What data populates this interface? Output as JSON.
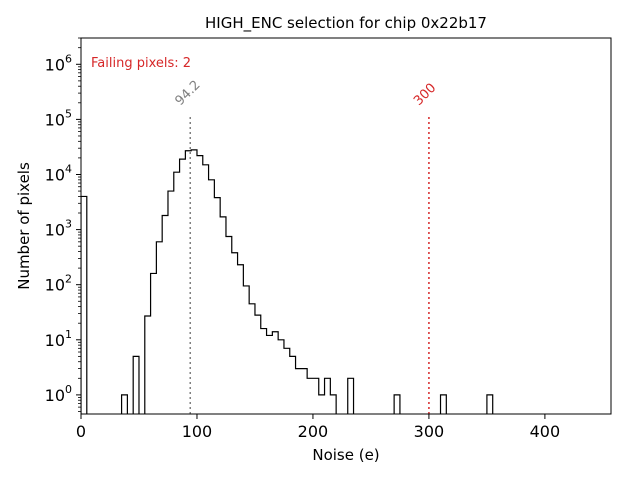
{
  "chart_data": {
    "type": "histogram",
    "title": "HIGH_ENC selection for chip 0x22b17",
    "xlabel": "Noise (e)",
    "ylabel": "Number of pixels",
    "yscale": "log",
    "xlim": [
      0,
      457
    ],
    "ylim": [
      0.45,
      3000000
    ],
    "xticks": [
      0,
      100,
      200,
      300,
      400
    ],
    "xtick_labels": [
      "0",
      "100",
      "200",
      "300",
      "400"
    ],
    "yticks": [
      1,
      10,
      100,
      1000,
      10000,
      100000,
      1000000
    ],
    "ytick_labels": [
      "10^0",
      "10^1",
      "10^2",
      "10^3",
      "10^4",
      "10^5",
      "10^6"
    ],
    "bin_width": 5,
    "bins": [
      {
        "x0": 0,
        "count": 4000
      },
      {
        "x0": 35,
        "count": 1
      },
      {
        "x0": 45,
        "count": 5
      },
      {
        "x0": 55,
        "count": 27
      },
      {
        "x0": 60,
        "count": 160
      },
      {
        "x0": 65,
        "count": 600
      },
      {
        "x0": 70,
        "count": 1800
      },
      {
        "x0": 75,
        "count": 5000
      },
      {
        "x0": 80,
        "count": 11000
      },
      {
        "x0": 85,
        "count": 19000
      },
      {
        "x0": 90,
        "count": 27000
      },
      {
        "x0": 95,
        "count": 28000
      },
      {
        "x0": 100,
        "count": 22000
      },
      {
        "x0": 105,
        "count": 15000
      },
      {
        "x0": 110,
        "count": 8000
      },
      {
        "x0": 115,
        "count": 3800
      },
      {
        "x0": 120,
        "count": 1700
      },
      {
        "x0": 125,
        "count": 750
      },
      {
        "x0": 130,
        "count": 380
      },
      {
        "x0": 135,
        "count": 230
      },
      {
        "x0": 140,
        "count": 95
      },
      {
        "x0": 145,
        "count": 45
      },
      {
        "x0": 150,
        "count": 28
      },
      {
        "x0": 155,
        "count": 16
      },
      {
        "x0": 160,
        "count": 12
      },
      {
        "x0": 165,
        "count": 14
      },
      {
        "x0": 170,
        "count": 10
      },
      {
        "x0": 175,
        "count": 7
      },
      {
        "x0": 180,
        "count": 5
      },
      {
        "x0": 185,
        "count": 3
      },
      {
        "x0": 190,
        "count": 3
      },
      {
        "x0": 195,
        "count": 2
      },
      {
        "x0": 200,
        "count": 2
      },
      {
        "x0": 205,
        "count": 1
      },
      {
        "x0": 210,
        "count": 2
      },
      {
        "x0": 215,
        "count": 1
      },
      {
        "x0": 230,
        "count": 2
      },
      {
        "x0": 270,
        "count": 1
      },
      {
        "x0": 310,
        "count": 1
      },
      {
        "x0": 350,
        "count": 1
      }
    ],
    "annotations": {
      "failing_text": "Failing pixels: 2",
      "median_value": 94.2,
      "median_label": "94.2",
      "threshold_value": 300,
      "threshold_label": "300"
    },
    "colors": {
      "histogram": "#000000",
      "median_line": "#808080",
      "threshold_line": "#d62728",
      "failing_text": "#d62728"
    }
  }
}
